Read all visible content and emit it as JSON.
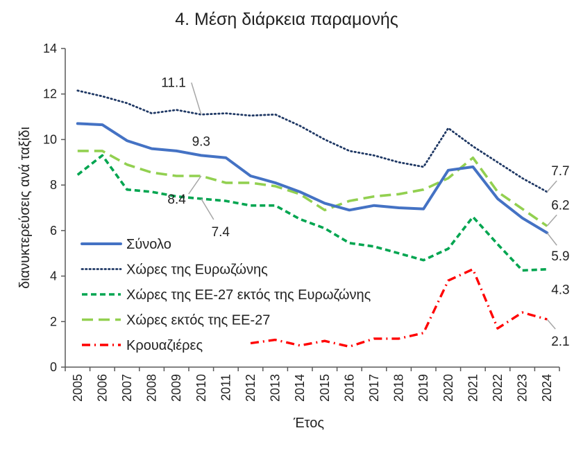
{
  "chart_data": {
    "type": "line",
    "title": "4. Μέση διάρκεια παραμονής",
    "xlabel": "Έτος",
    "ylabel": "διανυκτερεύσεις ανά ταξίδι",
    "ylim": [
      0,
      14
    ],
    "yticks": [
      0,
      2,
      4,
      6,
      8,
      10,
      12,
      14
    ],
    "categories": [
      "2005",
      "2006",
      "2007",
      "2008",
      "2009",
      "2010",
      "2011",
      "2012",
      "2013",
      "2014",
      "2015",
      "2016",
      "2017",
      "2018",
      "2019",
      "2020",
      "2021",
      "2022",
      "2023",
      "2024"
    ],
    "grid": false,
    "legend_position": "bottom-left",
    "series": [
      {
        "name": "Σύνολο",
        "color": "#4472C4",
        "style": "solid",
        "values": [
          10.7,
          10.65,
          9.95,
          9.6,
          9.5,
          9.3,
          9.2,
          8.4,
          8.1,
          7.7,
          7.2,
          6.9,
          7.1,
          7.0,
          6.95,
          8.65,
          8.8,
          7.4,
          6.55,
          5.9
        ]
      },
      {
        "name": "Χώρες της Ευρωζώνης",
        "color": "#1F3864",
        "style": "dotted",
        "values": [
          12.15,
          11.9,
          11.6,
          11.15,
          11.3,
          11.1,
          11.15,
          11.05,
          11.1,
          10.6,
          10.0,
          9.5,
          9.3,
          9.0,
          8.8,
          10.5,
          9.7,
          9.0,
          8.3,
          7.7
        ]
      },
      {
        "name": "Χώρες της ΕΕ-27 εκτός της Ευρωζώνης",
        "color": "#00A550",
        "style": "dashed",
        "values": [
          8.45,
          9.3,
          7.8,
          7.7,
          7.5,
          7.4,
          7.3,
          7.1,
          7.1,
          6.5,
          6.1,
          5.45,
          5.3,
          5.0,
          4.7,
          5.2,
          6.6,
          5.4,
          4.25,
          4.3
        ]
      },
      {
        "name": "Χώρες εκτός της ΕΕ-27",
        "color": "#92D050",
        "style": "longdash",
        "values": [
          9.5,
          9.5,
          8.9,
          8.55,
          8.4,
          8.4,
          8.1,
          8.1,
          7.95,
          7.6,
          6.9,
          7.3,
          7.5,
          7.6,
          7.8,
          8.3,
          9.2,
          7.7,
          6.95,
          6.2
        ]
      },
      {
        "name": "Κρουαζιέρες",
        "color": "#FF0000",
        "style": "dashdot",
        "values": [
          null,
          null,
          null,
          null,
          null,
          null,
          null,
          1.05,
          1.2,
          0.95,
          1.15,
          0.9,
          1.25,
          1.25,
          1.5,
          3.8,
          4.3,
          1.7,
          2.4,
          2.1
        ]
      }
    ],
    "data_labels": [
      {
        "text": "11.1",
        "series": "Χώρες της Ευρωζώνης",
        "x": "2010",
        "y": 11.1
      },
      {
        "text": "9.3",
        "series": "Σύνολο",
        "x": "2010",
        "y": 9.3
      },
      {
        "text": "8.4",
        "series": "Χώρες εκτός της ΕΕ-27",
        "x": "2010",
        "y": 8.4
      },
      {
        "text": "7.4",
        "series": "Χώρες της ΕΕ-27 εκτός της Ευρωζώνης",
        "x": "2010",
        "y": 7.4
      },
      {
        "text": "7.7",
        "series": "Χώρες της Ευρωζώνης",
        "x": "2024",
        "y": 7.7
      },
      {
        "text": "6.2",
        "series": "Χώρες εκτός της ΕΕ-27",
        "x": "2024",
        "y": 6.2
      },
      {
        "text": "5.9",
        "series": "Σύνολο",
        "x": "2024",
        "y": 5.9
      },
      {
        "text": "4.3",
        "series": "Χώρες της ΕΕ-27 εκτός της Ευρωζώνης",
        "x": "2024",
        "y": 4.3
      },
      {
        "text": "2.1",
        "series": "Κρουαζιέρες",
        "x": "2024",
        "y": 2.1
      }
    ]
  }
}
